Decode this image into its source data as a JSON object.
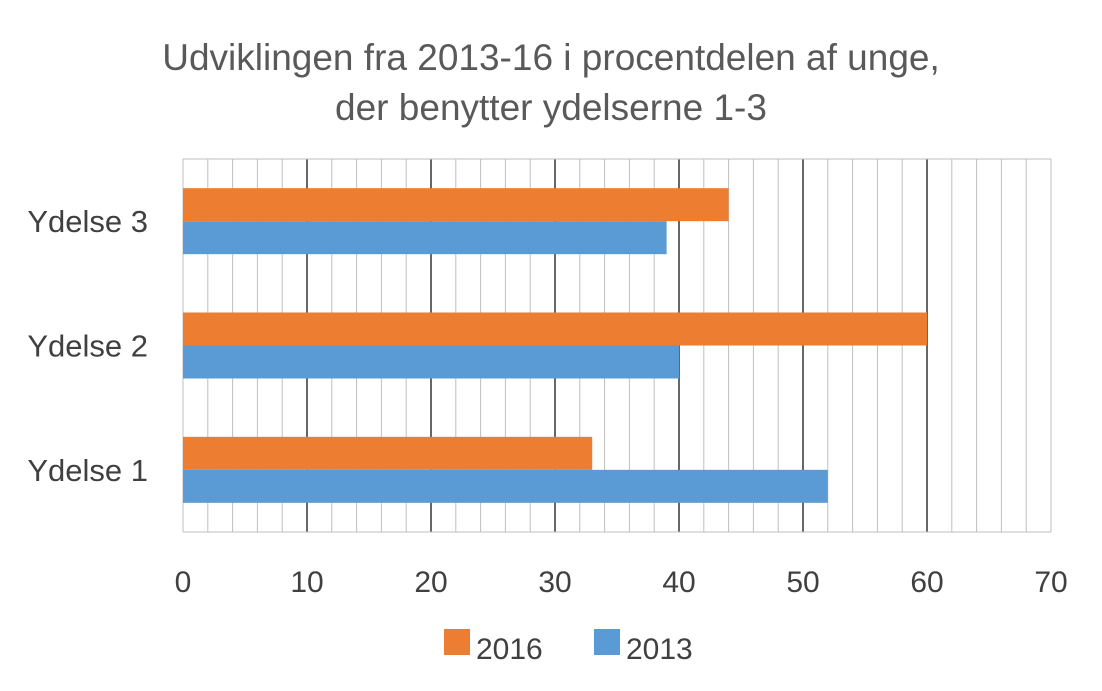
{
  "chart_data": {
    "type": "bar",
    "orientation": "horizontal",
    "title": "Udviklingen fra 2013-16 i procentdelen af unge, der benytter ydelserne 1-3",
    "title_lines": [
      "Udviklingen fra 2013-16 i procentdelen af unge,",
      "der benytter ydelserne 1-3"
    ],
    "categories": [
      "Ydelse 3",
      "Ydelse 2",
      "Ydelse 1"
    ],
    "series": [
      {
        "name": "2016",
        "color": "#ED7D31",
        "values": [
          44,
          60,
          33
        ]
      },
      {
        "name": "2013",
        "color": "#5B9BD5",
        "values": [
          39,
          40,
          52
        ]
      }
    ],
    "xlim": [
      0,
      70
    ],
    "xticks": [
      "0",
      "10",
      "20",
      "30",
      "40",
      "50",
      "60",
      "70"
    ],
    "xlabel": "",
    "ylabel": "",
    "grid": "vertical major and minor gridlines",
    "legend": "bottom"
  }
}
